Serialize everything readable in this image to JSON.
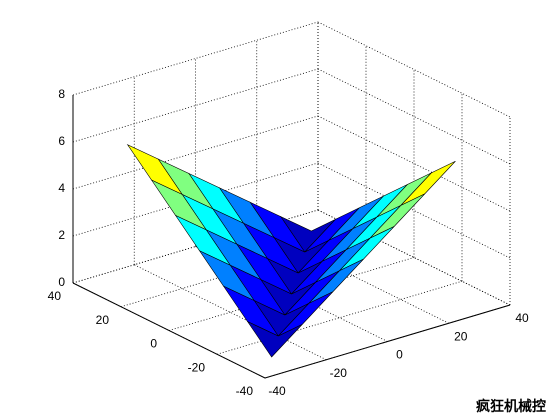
{
  "chart_data": {
    "type": "surface",
    "x": [
      -30,
      -20,
      -10,
      0,
      10,
      20,
      30
    ],
    "y": [
      -30,
      -20,
      -10,
      0,
      10,
      20,
      30
    ],
    "z": [
      [
        0,
        1,
        2,
        3,
        4,
        5,
        6
      ],
      [
        1,
        0,
        1,
        2,
        3,
        4,
        5
      ],
      [
        2,
        1,
        0,
        1,
        2,
        3,
        4
      ],
      [
        3,
        2,
        1,
        0,
        1,
        2,
        3
      ],
      [
        4,
        3,
        2,
        1,
        0,
        1,
        2
      ],
      [
        5,
        4,
        3,
        2,
        1,
        0,
        1
      ],
      [
        6,
        5,
        4,
        3,
        2,
        1,
        0
      ]
    ],
    "xlim": [
      -40,
      40
    ],
    "ylim": [
      -40,
      40
    ],
    "zlim": [
      0,
      8
    ],
    "xticks": [
      -40,
      -20,
      0,
      20,
      40
    ],
    "yticks": [
      -40,
      -20,
      0,
      20,
      40
    ],
    "zticks": [
      0,
      2,
      4,
      6,
      8
    ],
    "grid": true,
    "colormap": "jet"
  },
  "watermark": "疯狂机械控"
}
